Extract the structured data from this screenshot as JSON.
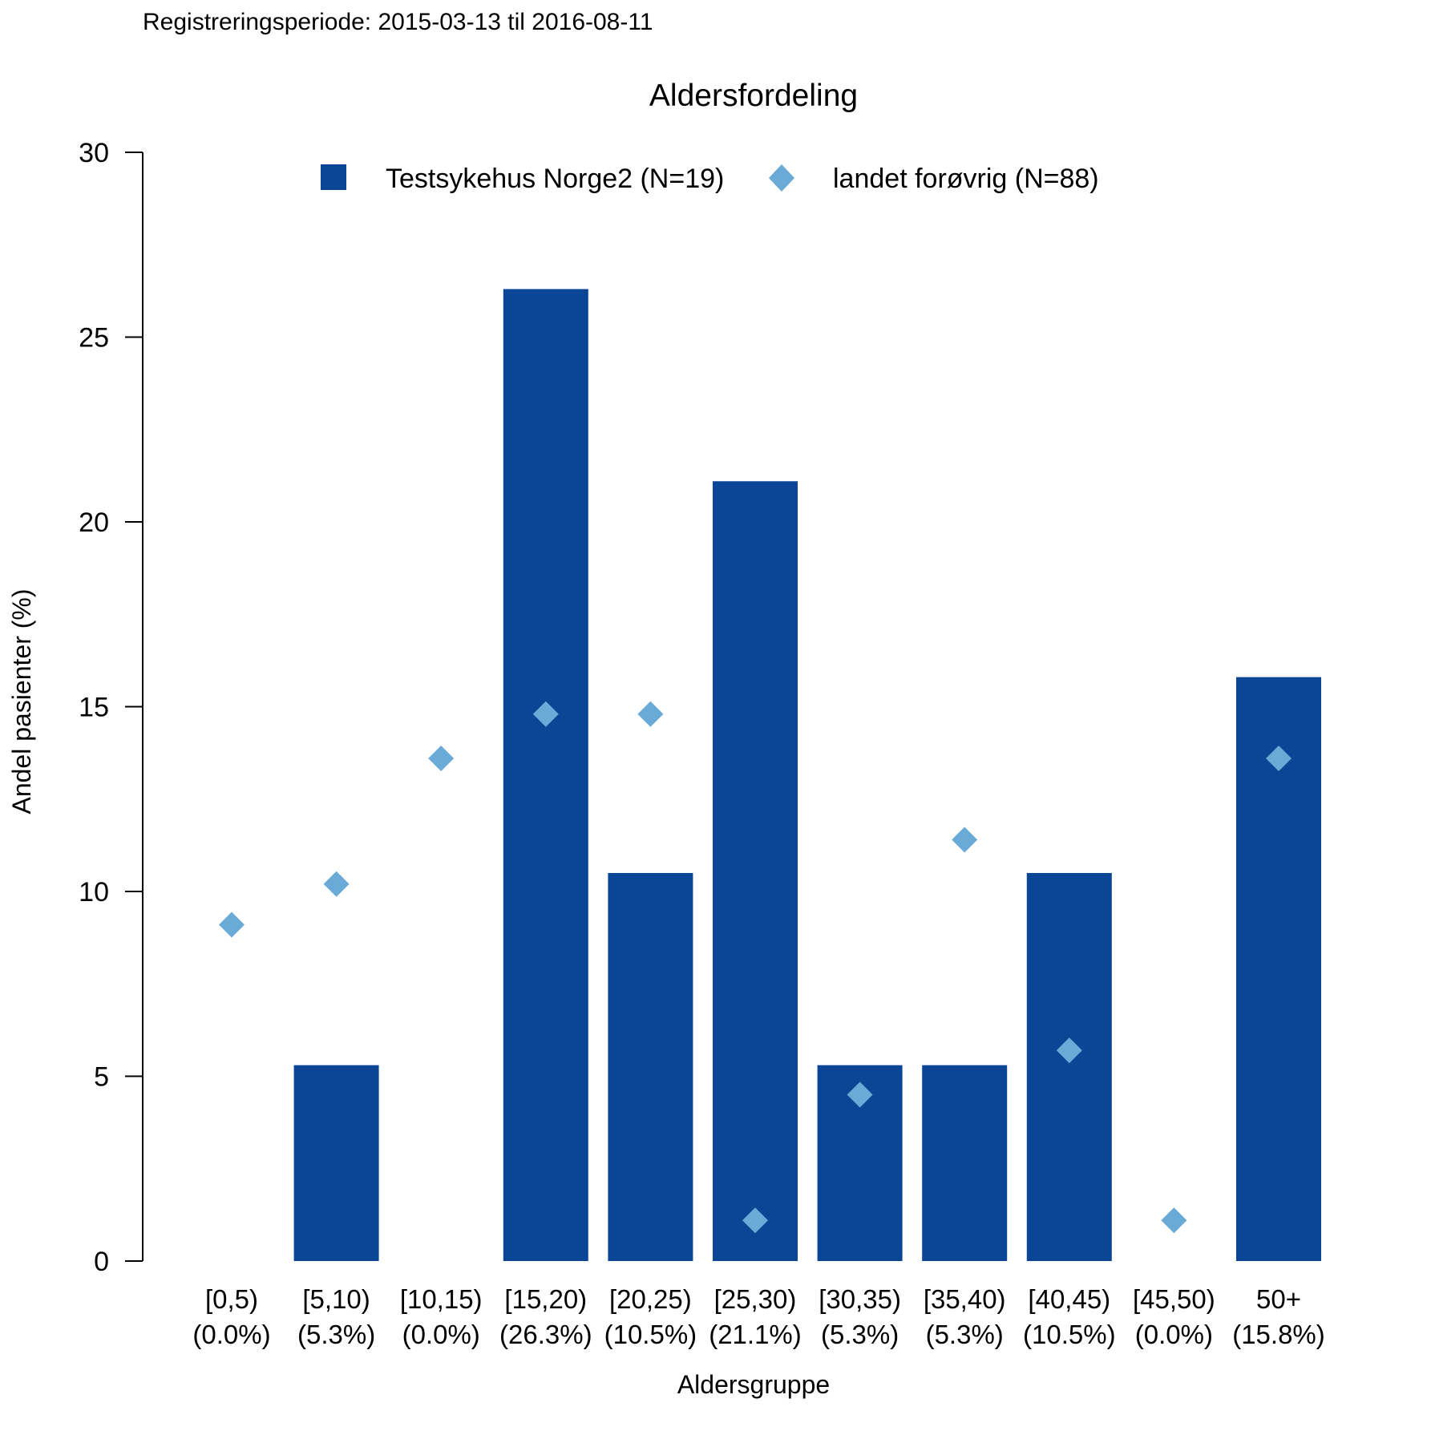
{
  "subtitle": "Registreringsperiode: 2015-03-13 til 2016-08-11",
  "colors": {
    "subtitle": "#0a4a9a",
    "hospital_bar": "#0b4595",
    "country_marker": "#6aaad6",
    "axis": "#000000"
  },
  "chart_data": {
    "type": "bar",
    "title": "Aldersfordeling",
    "xlabel": "Aldersgruppe",
    "ylabel": "Andel pasienter (%)",
    "ylim": [
      0,
      30
    ],
    "yticks": [
      0,
      5,
      10,
      15,
      20,
      25,
      30
    ],
    "grid": false,
    "legend_position": "top",
    "categories": [
      "[0,5)",
      "[5,10)",
      "[10,15)",
      "[15,20)",
      "[20,25)",
      "[25,30)",
      "[30,35)",
      "[35,40)",
      "[40,45)",
      "[45,50)",
      "50+"
    ],
    "category_sublabels": [
      "(0.0%)",
      "(5.3%)",
      "(0.0%)",
      "(26.3%)",
      "(10.5%)",
      "(21.1%)",
      "(5.3%)",
      "(5.3%)",
      "(10.5%)",
      "(0.0%)",
      "(15.8%)"
    ],
    "series": [
      {
        "name": "Testsykehus Norge2 (N=19)",
        "type": "bar",
        "marker": "square",
        "values": [
          0.0,
          5.3,
          0.0,
          26.3,
          10.5,
          21.1,
          5.3,
          5.3,
          10.5,
          0.0,
          15.8
        ]
      },
      {
        "name": "landet forøvrig (N=88)",
        "type": "point",
        "marker": "diamond",
        "values": [
          9.1,
          10.2,
          13.6,
          14.8,
          14.8,
          1.1,
          4.5,
          11.4,
          5.7,
          1.1,
          13.6
        ]
      }
    ]
  }
}
